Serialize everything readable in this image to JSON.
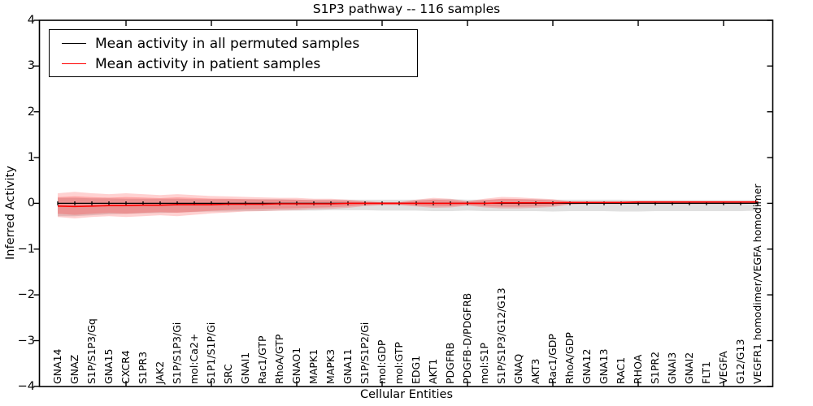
{
  "title": "S1P3 pathway -- 116 samples",
  "axes": {
    "ylabel": "Inferred Activity",
    "xlabel": "Cellular Entities",
    "yticks": [
      "4",
      "3",
      "2",
      "1",
      "0",
      "−1",
      "−2",
      "−3",
      "−4"
    ],
    "ylim": [
      -4,
      4
    ]
  },
  "legend": {
    "items": [
      {
        "label": "Mean activity in all permuted samples",
        "color": "#000000"
      },
      {
        "label": "Mean activity in patient samples",
        "color": "#ff0000"
      }
    ]
  },
  "chart_data": {
    "type": "line",
    "title": "S1P3 pathway -- 116 samples",
    "xlabel": "Cellular Entities",
    "ylabel": "Inferred Activity",
    "ylim": [
      -4,
      4
    ],
    "grid": false,
    "legend_position": "upper left",
    "categories": [
      "GNA14",
      "GNAZ",
      "S1P/S1P3/Gq",
      "GNA15",
      "CXCR4",
      "S1PR3",
      "JAK2",
      "S1P/S1P3/Gi",
      "mol:Ca2+",
      "S1P1/S1P/Gi",
      "SRC",
      "GNAI1",
      "Rac1/GTP",
      "RhoA/GTP",
      "GNAO1",
      "MAPK1",
      "MAPK3",
      "GNA11",
      "S1P/S1P2/Gi",
      "mol:GDP",
      "mol:GTP",
      "EDG1",
      "AKT1",
      "PDGFRB",
      "PDGFB-D/PDGFRB",
      "mol:S1P",
      "S1P/S1P3/G12/G13",
      "GNAQ",
      "AKT3",
      "Rac1/GDP",
      "RhoA/GDP",
      "GNA12",
      "GNA13",
      "RAC1",
      "RHOA",
      "S1PR2",
      "GNAI3",
      "GNAI2",
      "FLT1",
      "VEGFA",
      "G12/G13",
      "VEGFR1 homodimer/VEGFA homodimer"
    ],
    "series": [
      {
        "name": "Mean activity in all permuted samples",
        "color": "#000000",
        "band_fill": "rgba(0,0,0,0.12)",
        "values": [
          0,
          0,
          0,
          0,
          0,
          0,
          0,
          0,
          0,
          0,
          0,
          0,
          0,
          0,
          0,
          0,
          0,
          0,
          0,
          0,
          0,
          0,
          0,
          0,
          0,
          0,
          0,
          0,
          0,
          0,
          0,
          0,
          0,
          0,
          0,
          0,
          0,
          0,
          0,
          0,
          0,
          0
        ],
        "band_upper": [
          0.12,
          0.12,
          0.11,
          0.11,
          0.1,
          0.1,
          0.1,
          0.1,
          0.09,
          0.09,
          0.09,
          0.09,
          0.09,
          0.09,
          0.08,
          0.08,
          0.08,
          0.08,
          0.08,
          0.08,
          0.08,
          0.08,
          0.09,
          0.09,
          0.08,
          0.08,
          0.09,
          0.09,
          0.09,
          0.08,
          0.08,
          0.08,
          0.08,
          0.08,
          0.07,
          0.07,
          0.07,
          0.07,
          0.07,
          0.07,
          0.07,
          0.07
        ],
        "band_lower": [
          -0.28,
          -0.28,
          -0.26,
          -0.24,
          -0.23,
          -0.22,
          -0.21,
          -0.2,
          -0.19,
          -0.18,
          -0.18,
          -0.17,
          -0.17,
          -0.16,
          -0.16,
          -0.16,
          -0.15,
          -0.15,
          -0.15,
          -0.16,
          -0.16,
          -0.16,
          -0.17,
          -0.17,
          -0.16,
          -0.17,
          -0.17,
          -0.17,
          -0.17,
          -0.18,
          -0.17,
          -0.17,
          -0.17,
          -0.18,
          -0.18,
          -0.17,
          -0.17,
          -0.17,
          -0.17,
          -0.17,
          -0.17,
          -0.16
        ]
      },
      {
        "name": "Mean activity in patient samples",
        "color": "#ff0000",
        "band_fill": "rgba(255,0,0,0.18)",
        "values": [
          -0.06,
          -0.07,
          -0.06,
          -0.05,
          -0.05,
          -0.04,
          -0.04,
          -0.03,
          -0.03,
          -0.03,
          -0.02,
          -0.02,
          -0.02,
          -0.01,
          -0.01,
          -0.01,
          -0.01,
          0,
          0,
          0,
          0,
          0,
          0,
          0,
          0,
          0,
          0.01,
          0.01,
          0.01,
          0.01,
          0.02,
          0.02,
          0.02,
          0.02,
          0.03,
          0.03,
          0.03,
          0.03,
          0.03,
          0.03,
          0.03,
          0.03
        ],
        "band_upper": [
          0.22,
          0.25,
          0.22,
          0.2,
          0.22,
          0.2,
          0.18,
          0.2,
          0.18,
          0.16,
          0.15,
          0.14,
          0.13,
          0.12,
          0.12,
          0.1,
          0.1,
          0.08,
          0.05,
          0.03,
          0.03,
          0.08,
          0.12,
          0.1,
          0.05,
          0.1,
          0.14,
          0.13,
          0.11,
          0.09,
          0.04,
          0.04,
          0.04,
          0.04,
          0.04,
          0.04,
          0.04,
          0.04,
          0.04,
          0.04,
          0.04,
          0.05
        ],
        "band_lower": [
          -0.3,
          -0.33,
          -0.3,
          -0.28,
          -0.3,
          -0.28,
          -0.26,
          -0.28,
          -0.25,
          -0.22,
          -0.2,
          -0.18,
          -0.17,
          -0.16,
          -0.15,
          -0.13,
          -0.12,
          -0.1,
          -0.06,
          -0.04,
          -0.04,
          -0.07,
          -0.1,
          -0.09,
          -0.05,
          -0.09,
          -0.11,
          -0.11,
          -0.1,
          -0.08,
          -0.03,
          -0.02,
          -0.02,
          -0.02,
          -0.02,
          -0.02,
          -0.02,
          -0.02,
          -0.02,
          -0.02,
          -0.02,
          0.0
        ]
      }
    ]
  }
}
